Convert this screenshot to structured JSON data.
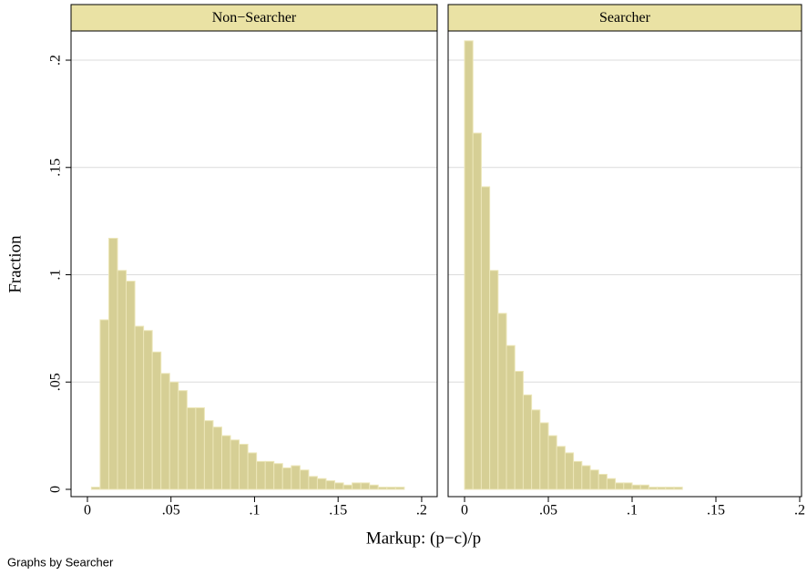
{
  "ylabel": "Fraction",
  "xlabel": "Markup: (p−c)/p",
  "note": "Graphs by Searcher",
  "chart_data": [
    {
      "type": "histogram",
      "title": "Non−Searcher",
      "color": "#d6cf95",
      "edge_color": "#ece6b8",
      "header_color": "#eae2a4",
      "grid": true,
      "bins": [
        0.0024,
        0.0076,
        0.0128,
        0.018,
        0.0232,
        0.0284,
        0.0336,
        0.0388,
        0.044,
        0.0492,
        0.0544,
        0.0596,
        0.0648,
        0.07,
        0.0752,
        0.0804,
        0.0856,
        0.0908,
        0.096,
        0.1012,
        0.1064,
        0.1116,
        0.1168,
        0.122,
        0.1272,
        0.1324,
        0.1376,
        0.1428,
        0.148,
        0.1532,
        0.1584,
        0.1636,
        0.1688,
        0.174,
        0.1792,
        0.1844,
        0.1896
      ],
      "values": [
        0.001,
        0.079,
        0.117,
        0.102,
        0.097,
        0.076,
        0.074,
        0.064,
        0.054,
        0.05,
        0.046,
        0.038,
        0.038,
        0.032,
        0.029,
        0.025,
        0.023,
        0.021,
        0.017,
        0.013,
        0.013,
        0.012,
        0.01,
        0.011,
        0.009,
        0.006,
        0.005,
        0.004,
        0.003,
        0.002,
        0.003,
        0.003,
        0.002,
        0.001,
        0.001,
        0.001
      ],
      "xlim": [
        -0.0098,
        0.2093
      ],
      "ylim": [
        -0.0034,
        0.2136
      ],
      "xticks": [
        0,
        {
          "value": 0.05,
          "label": ".05"
        },
        {
          "value": 0.1,
          "label": ".1"
        },
        {
          "value": 0.15,
          "label": ".15"
        },
        {
          "value": 0.2,
          "label": ".2"
        }
      ],
      "yticks": [
        0,
        {
          "value": 0.05,
          "label": ".05"
        },
        {
          "value": 0.1,
          "label": ".1"
        },
        {
          "value": 0.15,
          "label": ".15"
        },
        {
          "value": 0.2,
          "label": ".2"
        }
      ]
    },
    {
      "type": "histogram",
      "title": "Searcher",
      "color": "#d6cf95",
      "edge_color": "#ece6b8",
      "header_color": "#eae2a4",
      "grid": true,
      "bins": [
        0,
        0.005,
        0.01,
        0.015,
        0.02,
        0.025,
        0.03,
        0.035,
        0.04,
        0.045,
        0.05,
        0.055,
        0.06,
        0.065,
        0.07,
        0.075,
        0.08,
        0.085,
        0.09,
        0.095,
        0.1,
        0.105,
        0.11,
        0.115,
        0.12,
        0.125,
        0.13
      ],
      "values": [
        0.209,
        0.166,
        0.141,
        0.102,
        0.082,
        0.067,
        0.055,
        0.044,
        0.037,
        0.031,
        0.025,
        0.02,
        0.017,
        0.013,
        0.011,
        0.009,
        0.007,
        0.005,
        0.003,
        0.003,
        0.002,
        0.002,
        0.001,
        0.001,
        0.001,
        0.001
      ],
      "xlim": [
        -0.0098,
        0.2011
      ],
      "ylim": [
        -0.0034,
        0.2136
      ],
      "xticks": [
        0,
        {
          "value": 0.05,
          "label": ".05"
        },
        {
          "value": 0.1,
          "label": ".1"
        },
        {
          "value": 0.15,
          "label": ".15"
        },
        {
          "value": 0.2,
          "label": ".2"
        }
      ],
      "yticks": [
        0,
        0.05,
        0.1,
        0.15,
        0.2
      ]
    }
  ]
}
